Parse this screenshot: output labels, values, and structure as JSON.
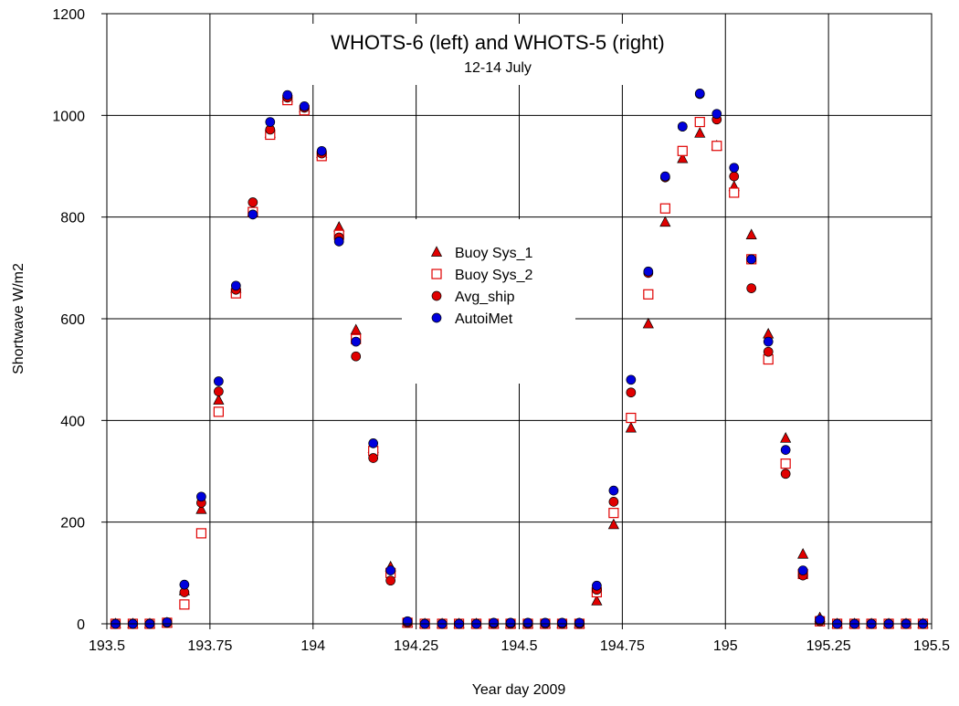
{
  "chart_data": {
    "type": "scatter",
    "title": "WHOTS-6 (left) and WHOTS-5 (right)",
    "subtitle": "12-14 July",
    "xlabel": "Year day 2009",
    "ylabel": "Shortwave W/m2",
    "xlim": [
      193.5,
      195.5
    ],
    "ylim": [
      0,
      1200
    ],
    "x_ticks": [
      193.5,
      193.75,
      194,
      194.25,
      194.5,
      194.75,
      195,
      195.25,
      195.5
    ],
    "x_tick_labels": [
      "193.5",
      "193.75",
      "194",
      "194.25",
      "194.5",
      "194.75",
      "195",
      "195.25",
      "195.5"
    ],
    "y_ticks": [
      0,
      200,
      400,
      600,
      800,
      1000,
      1200
    ],
    "y_tick_labels": [
      "0",
      "200",
      "400",
      "600",
      "800",
      "1000",
      "1200"
    ],
    "grid": true,
    "legend_position": "center",
    "x": [
      193.521,
      193.563,
      193.604,
      193.646,
      193.688,
      193.729,
      193.771,
      193.813,
      193.854,
      193.896,
      193.938,
      193.979,
      194.021,
      194.063,
      194.104,
      194.146,
      194.188,
      194.229,
      194.271,
      194.313,
      194.354,
      194.396,
      194.438,
      194.479,
      194.521,
      194.563,
      194.604,
      194.646,
      194.688,
      194.729,
      194.771,
      194.813,
      194.854,
      194.896,
      194.938,
      194.979,
      195.021,
      195.063,
      195.104,
      195.146,
      195.188,
      195.229,
      195.271,
      195.313,
      195.354,
      195.396,
      195.438,
      195.479
    ],
    "series": [
      {
        "name": "Buoy Sys_1",
        "marker": "triangle",
        "color": "#e00000",
        "values": [
          0,
          0,
          0,
          2,
          65,
          225,
          440,
          660,
          810,
          965,
          1035,
          1015,
          925,
          780,
          578,
          345,
          112,
          2,
          0,
          0,
          0,
          0,
          0,
          0,
          0,
          0,
          0,
          0,
          45,
          195,
          385,
          590,
          790,
          915,
          965,
          940,
          860,
          765,
          570,
          365,
          137,
          12,
          0,
          0,
          0,
          0,
          0,
          0
        ]
      },
      {
        "name": "Buoy Sys_2",
        "marker": "open-square",
        "color": "#e00000",
        "values": [
          0,
          0,
          0,
          2,
          38,
          178,
          417,
          650,
          810,
          962,
          1030,
          1010,
          920,
          765,
          560,
          340,
          100,
          2,
          0,
          0,
          0,
          0,
          0,
          0,
          0,
          0,
          0,
          0,
          62,
          218,
          405,
          648,
          817,
          930,
          987,
          940,
          848,
          717,
          520,
          315,
          98,
          5,
          0,
          0,
          0,
          0,
          0,
          0
        ]
      },
      {
        "name": "Avg_ship",
        "marker": "circle",
        "color": "#e00000",
        "values": [
          0,
          0,
          0,
          2,
          62,
          238,
          457,
          657,
          829,
          972,
          1035,
          1015,
          925,
          760,
          526,
          326,
          85,
          2,
          0,
          0,
          0,
          0,
          0,
          0,
          0,
          0,
          0,
          0,
          67,
          240,
          455,
          690,
          878,
          978,
          1042,
          992,
          880,
          660,
          535,
          295,
          95,
          5,
          0,
          0,
          0,
          0,
          0,
          0
        ]
      },
      {
        "name": "AutoiMet",
        "marker": "circle",
        "color": "#0000dd",
        "values": [
          0,
          0,
          0,
          3,
          77,
          250,
          477,
          665,
          805,
          987,
          1040,
          1018,
          930,
          752,
          555,
          355,
          105,
          5,
          0,
          0,
          0,
          0,
          2,
          2,
          2,
          2,
          2,
          2,
          75,
          262,
          480,
          693,
          880,
          978,
          1043,
          1003,
          897,
          717,
          555,
          342,
          105,
          8,
          0,
          0,
          0,
          0,
          0,
          0
        ]
      }
    ]
  }
}
